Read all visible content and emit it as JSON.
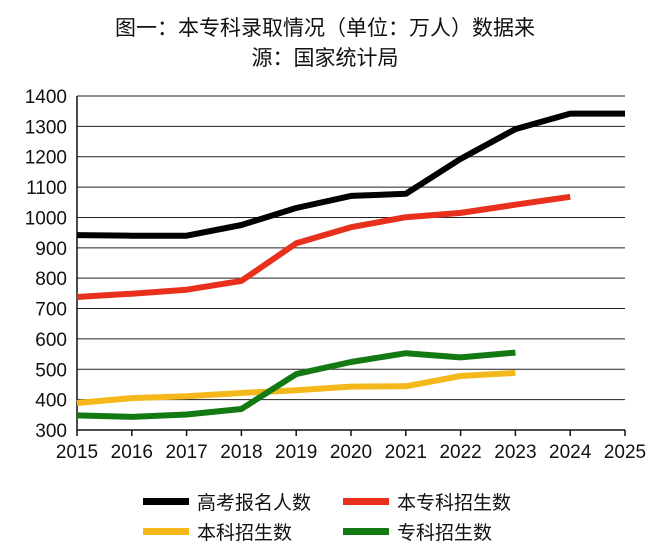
{
  "chart_data": {
    "type": "line",
    "title_line1": "图一：本专科录取情况（单位：万人）数据来",
    "title_line2": "源：国家统计局",
    "xlabel": "",
    "ylabel": "",
    "x": [
      2015,
      2016,
      2017,
      2018,
      2019,
      2020,
      2021,
      2022,
      2023,
      2024,
      2025
    ],
    "x_ticks": [
      "2015",
      "2016",
      "2017",
      "2018",
      "2019",
      "2020",
      "2021",
      "2022",
      "2023",
      "2024",
      "2025"
    ],
    "y_ticks": [
      "300",
      "400",
      "500",
      "600",
      "700",
      "800",
      "900",
      "1000",
      "1100",
      "1200",
      "1300",
      "1400"
    ],
    "xlim": [
      2015,
      2025
    ],
    "ylim": [
      300,
      1400
    ],
    "grid": true,
    "legend_position": "bottom",
    "series": [
      {
        "name": "高考报名人数",
        "color": "#000000",
        "points": [
          [
            2015,
            942
          ],
          [
            2016,
            940
          ],
          [
            2017,
            940
          ],
          [
            2018,
            975
          ],
          [
            2019,
            1031
          ],
          [
            2020,
            1071
          ],
          [
            2021,
            1078
          ],
          [
            2022,
            1193
          ],
          [
            2023,
            1291
          ],
          [
            2024,
            1342
          ],
          [
            2025,
            1342
          ]
        ]
      },
      {
        "name": "本专科招生数",
        "color": "#e8301c",
        "points": [
          [
            2015,
            738
          ],
          [
            2016,
            749
          ],
          [
            2017,
            762
          ],
          [
            2018,
            791
          ],
          [
            2019,
            915
          ],
          [
            2020,
            968
          ],
          [
            2021,
            1001
          ],
          [
            2022,
            1015
          ],
          [
            2023,
            1042
          ],
          [
            2024,
            1068
          ]
        ]
      },
      {
        "name": "本科招生数",
        "color": "#f4b81a",
        "points": [
          [
            2015,
            389
          ],
          [
            2016,
            405
          ],
          [
            2017,
            411
          ],
          [
            2018,
            422
          ],
          [
            2019,
            431
          ],
          [
            2020,
            443
          ],
          [
            2021,
            444
          ],
          [
            2022,
            478
          ],
          [
            2023,
            488
          ]
        ]
      },
      {
        "name": "专科招生数",
        "color": "#137a13",
        "points": [
          [
            2015,
            348
          ],
          [
            2016,
            343
          ],
          [
            2017,
            351
          ],
          [
            2018,
            369
          ],
          [
            2019,
            484
          ],
          [
            2020,
            524
          ],
          [
            2021,
            553
          ],
          [
            2022,
            539
          ],
          [
            2023,
            555
          ]
        ]
      }
    ]
  }
}
